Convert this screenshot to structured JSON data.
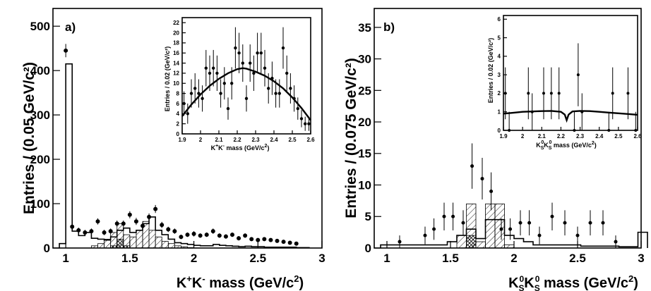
{
  "chart_data": [
    {
      "type": "bar",
      "panel_label": "a)",
      "xlabel": "K⁺K⁻ mass (GeV/c²)",
      "ylabel": "Entries / (0.05 GeV/c²)",
      "xlim": [
        0.9,
        3.0
      ],
      "ylim": [
        0,
        540
      ],
      "xticks": [
        1,
        1.5,
        2,
        2.5,
        3
      ],
      "yticks": [
        0,
        100,
        200,
        300,
        400,
        500
      ],
      "bin_width": 0.05,
      "bin_edges_start": 0.95,
      "histogram_open": [
        10,
        415,
        38,
        28,
        35,
        22,
        20,
        18,
        25,
        40,
        45,
        35,
        40,
        55,
        70,
        40,
        30,
        20,
        12,
        10,
        8,
        6,
        5,
        5,
        8,
        6,
        5,
        4,
        3,
        4,
        3,
        3,
        2,
        2,
        2,
        2,
        2,
        1,
        1
      ],
      "histogram_hatched": [
        0,
        0,
        0,
        0,
        0,
        5,
        10,
        20,
        35,
        55,
        30,
        25,
        40,
        60,
        40,
        25,
        15,
        10,
        5,
        3,
        1,
        0,
        0,
        0,
        0,
        0,
        0,
        0,
        0,
        0,
        0,
        0,
        0,
        0,
        0,
        0,
        0,
        0,
        0
      ],
      "histogram_crosshatched": [
        0,
        0,
        0,
        0,
        0,
        0,
        0,
        0,
        5,
        20,
        5,
        0,
        0,
        0,
        0,
        0,
        0,
        0,
        0,
        0,
        0,
        0,
        0,
        0,
        0,
        0,
        0,
        0,
        0,
        0,
        0,
        0,
        0,
        0,
        0,
        0,
        0,
        0,
        0
      ],
      "points": {
        "x": [
          1.0,
          1.05,
          1.1,
          1.15,
          1.2,
          1.25,
          1.3,
          1.35,
          1.4,
          1.45,
          1.5,
          1.55,
          1.6,
          1.65,
          1.7,
          1.75,
          1.8,
          1.85,
          1.9,
          1.95,
          2.0,
          2.05,
          2.1,
          2.15,
          2.2,
          2.25,
          2.3,
          2.35,
          2.4,
          2.45,
          2.5,
          2.55,
          2.6,
          2.65,
          2.7,
          2.75,
          2.8
        ],
        "y": [
          445,
          48,
          40,
          35,
          38,
          60,
          35,
          38,
          55,
          55,
          75,
          60,
          50,
          70,
          88,
          52,
          42,
          38,
          25,
          30,
          32,
          28,
          30,
          38,
          28,
          26,
          30,
          22,
          28,
          20,
          18,
          20,
          18,
          16,
          14,
          12,
          10
        ],
        "err": [
          15,
          7,
          6,
          6,
          6,
          7,
          6,
          6,
          7,
          7,
          8,
          8,
          7,
          8,
          9,
          7,
          6,
          6,
          5,
          5,
          6,
          5,
          5,
          6,
          5,
          5,
          5,
          5,
          5,
          4,
          4,
          4,
          4,
          4,
          4,
          3,
          3
        ]
      },
      "inset": {
        "xlabel": "K⁺K⁻ mass (GeV/c²)",
        "ylabel": "Entries / 0.02 (GeV/c²)",
        "xlim": [
          1.9,
          2.6
        ],
        "ylim": [
          0,
          23
        ],
        "xticks": [
          1.9,
          2,
          2.1,
          2.2,
          2.3,
          2.4,
          2.5,
          2.6
        ],
        "yticks": [
          0,
          2,
          4,
          6,
          8,
          10,
          12,
          14,
          16,
          18,
          20,
          22
        ],
        "points": {
          "x": [
            1.91,
            1.93,
            1.95,
            1.97,
            1.99,
            2.01,
            2.03,
            2.05,
            2.07,
            2.09,
            2.11,
            2.13,
            2.15,
            2.17,
            2.19,
            2.21,
            2.23,
            2.25,
            2.27,
            2.29,
            2.31,
            2.33,
            2.35,
            2.37,
            2.39,
            2.41,
            2.43,
            2.45,
            2.47,
            2.49,
            2.51,
            2.53,
            2.55,
            2.57,
            2.59
          ],
          "y": [
            6,
            4,
            8,
            9,
            8,
            7,
            13,
            12,
            13,
            12,
            8,
            10,
            5,
            10,
            17,
            16,
            14,
            7,
            14,
            12,
            16,
            16,
            13,
            9,
            11,
            8,
            8,
            17,
            12,
            9,
            7,
            5,
            3,
            2,
            2
          ],
          "err": [
            2.4,
            2,
            2.8,
            3,
            2.8,
            2.6,
            3.6,
            3.5,
            3.6,
            3.5,
            2.8,
            3.2,
            2.2,
            3.2,
            4.1,
            4,
            3.7,
            2.6,
            3.7,
            3.5,
            4,
            4,
            3.6,
            3,
            3.3,
            2.8,
            2.8,
            4.1,
            3.5,
            3,
            2.6,
            2.2,
            1.7,
            1.4,
            1.4
          ]
        },
        "fit": {
          "x": [
            1.9,
            1.95,
            2.0,
            2.05,
            2.1,
            2.15,
            2.2,
            2.23,
            2.25,
            2.3,
            2.35,
            2.4,
            2.45,
            2.5,
            2.55,
            2.6
          ],
          "y": [
            3.5,
            5.8,
            7.8,
            9.5,
            10.9,
            12.0,
            12.8,
            13.0,
            12.9,
            12.3,
            11.5,
            10.4,
            9.0,
            7.2,
            5.1,
            2.7
          ]
        }
      }
    },
    {
      "type": "bar",
      "panel_label": "b)",
      "xlabel": "K⁰ₛK⁰ₛ mass (GeV/c²)",
      "ylabel": "Entries / (0.075 GeV/c²)",
      "xlim": [
        0.9,
        3.0
      ],
      "ylim": [
        0,
        38
      ],
      "xticks": [
        1,
        1.5,
        2,
        2.5,
        3
      ],
      "yticks": [
        0,
        5,
        10,
        15,
        20,
        25,
        30,
        35
      ],
      "bin_width": 0.075,
      "bin_edges_start": 0.95,
      "histogram_open": [
        0.5,
        0.5,
        0.5,
        0.5,
        0.5,
        0.5,
        0.5,
        1,
        2,
        3,
        1.5,
        4.5,
        4.5,
        2,
        1.5,
        1,
        0.5,
        0.5,
        0.5,
        0.5,
        0.5,
        0.3,
        0.3,
        0.3,
        0.3,
        0.2,
        0.2,
        2.5
      ],
      "histogram_hatched": [
        0,
        0,
        0,
        0,
        0,
        0,
        0,
        0,
        2,
        7,
        1,
        7,
        7,
        0.5,
        0,
        0,
        0,
        0,
        0,
        0,
        0,
        0,
        0,
        0,
        0,
        0,
        0,
        0
      ],
      "histogram_crosshatched": [
        0,
        0,
        0,
        0,
        0,
        0,
        0,
        0,
        0,
        2,
        0,
        0,
        0,
        0,
        0,
        0,
        0,
        0,
        0,
        0,
        0,
        0,
        0,
        0,
        0,
        0,
        0,
        0
      ],
      "points": {
        "x": [
          1.1,
          1.3,
          1.37,
          1.45,
          1.52,
          1.6,
          1.67,
          1.75,
          1.82,
          1.9,
          1.97,
          2.05,
          2.12,
          2.2,
          2.3,
          2.4,
          2.5,
          2.6,
          2.7,
          2.8
        ],
        "y": [
          1,
          2,
          3,
          5,
          5,
          4,
          13,
          11,
          9,
          3,
          3,
          4,
          4,
          2,
          5,
          4,
          2,
          4,
          4,
          1
        ],
        "err": [
          1,
          1.4,
          1.7,
          2.2,
          2.2,
          2,
          3.6,
          3.3,
          3,
          1.7,
          1.7,
          2,
          2,
          1.4,
          2.2,
          2,
          1.4,
          2,
          2,
          1
        ]
      },
      "inset": {
        "xlabel": "K⁰ₛK⁰ₛ mass (GeV/c²)",
        "ylabel": "Entries / 0.02 (GeV/c²)",
        "xlim": [
          1.9,
          2.6
        ],
        "ylim": [
          0,
          6.2
        ],
        "xticks": [
          1.9,
          2,
          2.1,
          2.2,
          2.3,
          2.4,
          2.5,
          2.6
        ],
        "yticks": [
          0,
          1,
          2,
          3,
          4,
          5,
          6
        ],
        "points": {
          "x": [
            1.91,
            1.93,
            2.03,
            2.05,
            2.11,
            2.15,
            2.19,
            2.27,
            2.29,
            2.31,
            2.45,
            2.47,
            2.55,
            2.59
          ],
          "y": [
            2,
            0,
            2,
            1,
            2,
            2,
            2,
            0,
            3,
            1,
            0,
            2,
            2,
            0
          ],
          "err": [
            1.4,
            1,
            1.4,
            1,
            1.4,
            1.4,
            1.4,
            1,
            1.7,
            1,
            1,
            1.4,
            1.4,
            1
          ]
        },
        "fit": {
          "x": [
            1.9,
            1.95,
            2.0,
            2.05,
            2.1,
            2.15,
            2.2,
            2.22,
            2.23,
            2.24,
            2.26,
            2.3,
            2.35,
            2.4,
            2.45,
            2.5,
            2.55,
            2.6
          ],
          "y": [
            0.9,
            0.95,
            1.0,
            1.02,
            1.04,
            1.05,
            1.0,
            0.85,
            0.55,
            0.85,
            1.02,
            1.05,
            1.04,
            1.0,
            0.96,
            0.92,
            0.88,
            0.84
          ]
        }
      }
    }
  ]
}
